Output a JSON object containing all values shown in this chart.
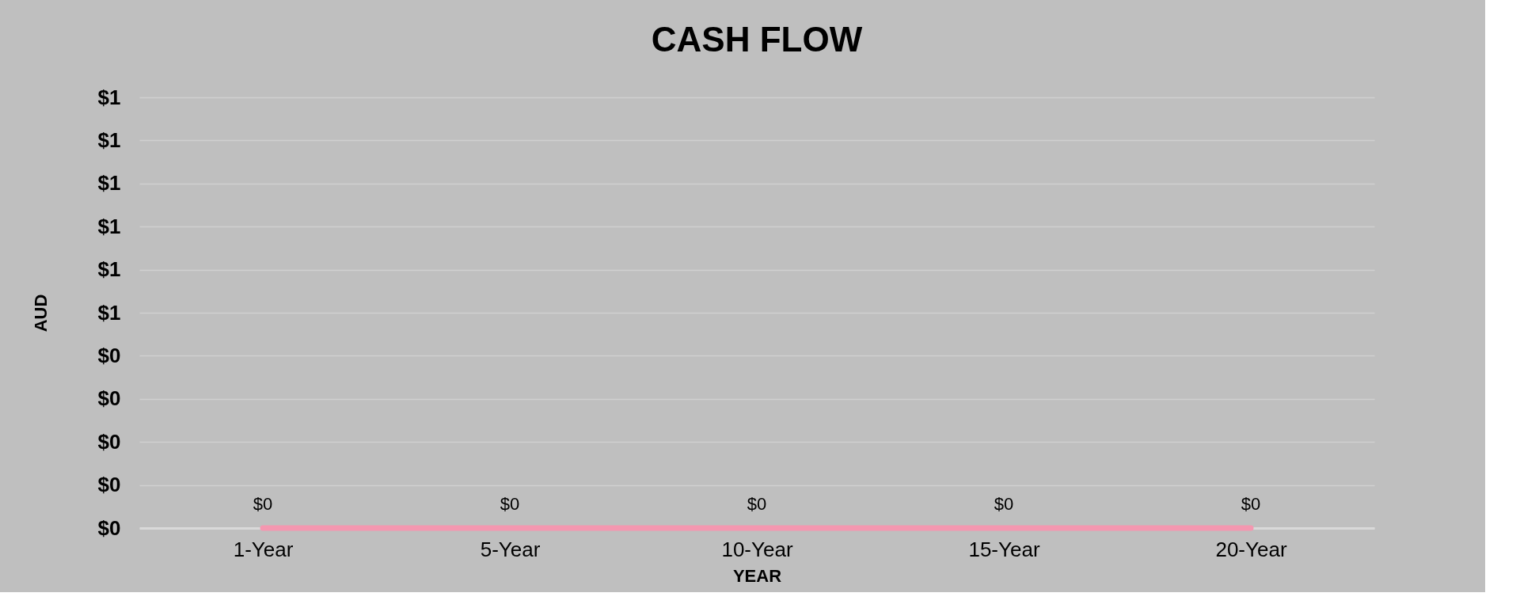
{
  "chart_data": {
    "type": "line",
    "title": "CASH FLOW",
    "xlabel": "YEAR",
    "ylabel": "AUD",
    "categories": [
      "1-Year",
      "5-Year",
      "10-Year",
      "15-Year",
      "20-Year"
    ],
    "series": [
      {
        "color": "#f497b0",
        "values": [
          0,
          0,
          0,
          0,
          0
        ]
      }
    ],
    "value_labels": [
      "$0",
      "$0",
      "$0",
      "$0",
      "$0"
    ],
    "ylim": [
      0,
      1
    ],
    "yticks": [
      {
        "value": 0,
        "label": "$0"
      },
      {
        "value": 0.1,
        "label": "$0"
      },
      {
        "value": 0.2,
        "label": "$0"
      },
      {
        "value": 0.3,
        "label": "$0"
      },
      {
        "value": 0.4,
        "label": "$0"
      },
      {
        "value": 0.5,
        "label": "$1"
      },
      {
        "value": 0.6,
        "label": "$1"
      },
      {
        "value": 0.7,
        "label": "$1"
      },
      {
        "value": 0.8,
        "label": "$1"
      },
      {
        "value": 0.9,
        "label": "$1"
      },
      {
        "value": 1,
        "label": "$1"
      }
    ],
    "grid": "y",
    "marker": "none",
    "line_style": "solid"
  }
}
